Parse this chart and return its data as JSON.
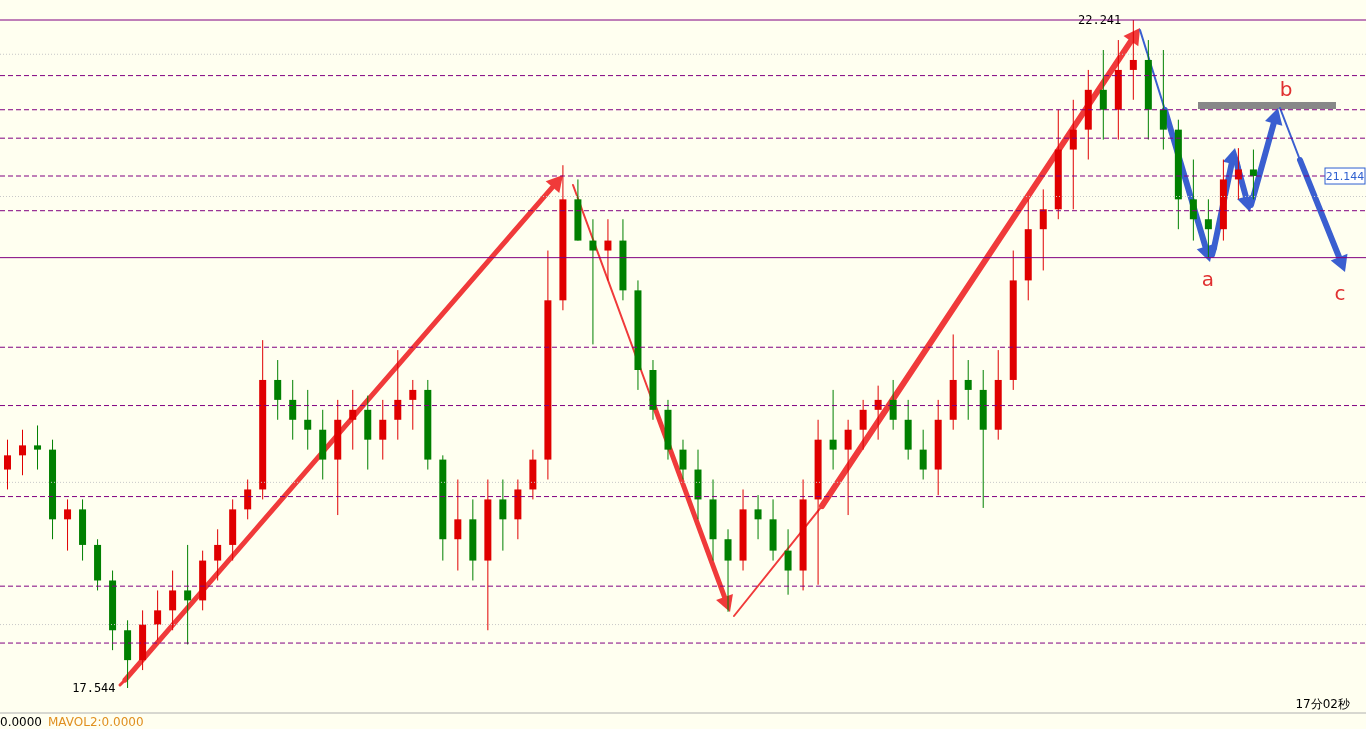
{
  "chart_data": {
    "type": "candlestick",
    "categories": [
      null,
      null,
      null,
      null,
      null,
      null,
      null,
      null,
      null,
      null,
      null,
      null,
      null,
      null,
      null,
      null,
      null,
      null,
      null,
      null,
      null,
      null,
      null,
      null,
      null,
      null,
      null,
      null,
      null,
      null,
      null,
      null,
      null,
      null,
      null,
      null,
      null,
      null,
      null,
      null,
      null,
      null,
      null,
      null,
      null,
      null,
      null,
      null,
      null,
      null,
      null,
      null,
      null,
      null,
      null,
      null,
      null,
      null,
      null,
      null,
      null,
      null,
      null,
      null,
      null,
      null,
      null,
      null,
      null,
      null,
      null,
      null,
      null,
      null,
      null,
      null,
      null,
      null,
      null,
      null,
      null,
      null,
      null,
      null
    ],
    "ohlc": [
      [
        19.08,
        19.29,
        18.94,
        19.18
      ],
      [
        19.18,
        19.36,
        19.04,
        19.25
      ],
      [
        19.25,
        19.39,
        19.08,
        19.22
      ],
      [
        19.22,
        19.29,
        18.59,
        18.73
      ],
      [
        18.73,
        18.87,
        18.51,
        18.8
      ],
      [
        18.8,
        18.87,
        18.44,
        18.55
      ],
      [
        18.55,
        18.59,
        18.23,
        18.3
      ],
      [
        18.3,
        18.37,
        17.81,
        17.95
      ],
      [
        17.95,
        18.02,
        17.544,
        17.74
      ],
      [
        17.74,
        18.09,
        17.67,
        17.99
      ],
      [
        17.99,
        18.23,
        17.88,
        18.09
      ],
      [
        18.09,
        18.37,
        17.95,
        18.23
      ],
      [
        18.23,
        18.55,
        17.85,
        18.16
      ],
      [
        18.16,
        18.51,
        18.09,
        18.44
      ],
      [
        18.44,
        18.66,
        18.3,
        18.55
      ],
      [
        18.55,
        18.87,
        18.44,
        18.8
      ],
      [
        18.8,
        19.01,
        18.73,
        18.94
      ],
      [
        18.94,
        19.99,
        18.87,
        19.71
      ],
      [
        19.71,
        19.85,
        19.43,
        19.57
      ],
      [
        19.57,
        19.71,
        19.29,
        19.43
      ],
      [
        19.43,
        19.64,
        19.22,
        19.36
      ],
      [
        19.36,
        19.5,
        19.01,
        19.15
      ],
      [
        19.15,
        19.57,
        18.76,
        19.43
      ],
      [
        19.43,
        19.64,
        19.22,
        19.5
      ],
      [
        19.5,
        19.6,
        19.08,
        19.29
      ],
      [
        19.29,
        19.57,
        19.15,
        19.43
      ],
      [
        19.43,
        19.92,
        19.29,
        19.57
      ],
      [
        19.57,
        19.71,
        19.36,
        19.64
      ],
      [
        19.64,
        19.71,
        19.08,
        19.15
      ],
      [
        19.15,
        19.18,
        18.44,
        18.59
      ],
      [
        18.59,
        19.01,
        18.37,
        18.73
      ],
      [
        18.73,
        18.87,
        18.3,
        18.44
      ],
      [
        18.44,
        19.01,
        17.95,
        18.87
      ],
      [
        18.87,
        19.01,
        18.51,
        18.73
      ],
      [
        18.73,
        19.01,
        18.59,
        18.94
      ],
      [
        18.94,
        19.22,
        18.87,
        19.15
      ],
      [
        19.15,
        20.62,
        19.01,
        20.27
      ],
      [
        20.27,
        21.22,
        20.2,
        20.98
      ],
      [
        20.98,
        21.12,
        20.69,
        20.69
      ],
      [
        20.69,
        20.84,
        19.96,
        20.62
      ],
      [
        20.62,
        20.84,
        20.41,
        20.69
      ],
      [
        20.69,
        20.84,
        20.27,
        20.34
      ],
      [
        20.34,
        20.41,
        19.64,
        19.78
      ],
      [
        19.78,
        19.85,
        19.43,
        19.5
      ],
      [
        19.5,
        19.57,
        19.15,
        19.22
      ],
      [
        19.22,
        19.29,
        19.01,
        19.08
      ],
      [
        19.08,
        19.22,
        18.73,
        18.87
      ],
      [
        18.87,
        19.01,
        18.44,
        18.59
      ],
      [
        18.59,
        18.66,
        18.08,
        18.44
      ],
      [
        18.44,
        18.94,
        18.37,
        18.8
      ],
      [
        18.8,
        18.9,
        18.59,
        18.73
      ],
      [
        18.73,
        18.87,
        18.44,
        18.51
      ],
      [
        18.51,
        18.66,
        18.2,
        18.37
      ],
      [
        18.37,
        19.01,
        18.23,
        18.87
      ],
      [
        18.87,
        19.43,
        18.27,
        19.29
      ],
      [
        19.29,
        19.64,
        19.08,
        19.22
      ],
      [
        19.22,
        19.43,
        18.76,
        19.36
      ],
      [
        19.36,
        19.57,
        19.22,
        19.5
      ],
      [
        19.5,
        19.67,
        19.29,
        19.57
      ],
      [
        19.57,
        19.71,
        19.36,
        19.43
      ],
      [
        19.43,
        19.57,
        19.15,
        19.22
      ],
      [
        19.22,
        19.36,
        19.01,
        19.08
      ],
      [
        19.08,
        19.57,
        18.9,
        19.43
      ],
      [
        19.43,
        20.03,
        19.36,
        19.71
      ],
      [
        19.71,
        19.85,
        19.43,
        19.64
      ],
      [
        19.64,
        19.78,
        18.81,
        19.36
      ],
      [
        19.36,
        19.92,
        19.29,
        19.71
      ],
      [
        19.71,
        20.62,
        19.64,
        20.41
      ],
      [
        20.41,
        20.98,
        20.27,
        20.77
      ],
      [
        20.77,
        21.05,
        20.48,
        20.91
      ],
      [
        20.91,
        21.61,
        20.84,
        21.33
      ],
      [
        21.33,
        21.68,
        20.91,
        21.47
      ],
      [
        21.47,
        21.89,
        21.26,
        21.75
      ],
      [
        21.75,
        22.03,
        21.4,
        21.61
      ],
      [
        21.61,
        22.1,
        21.4,
        21.89
      ],
      [
        21.89,
        22.241,
        21.68,
        21.96
      ],
      [
        21.96,
        22.1,
        21.4,
        21.61
      ],
      [
        21.61,
        22.03,
        21.33,
        21.47
      ],
      [
        21.47,
        21.54,
        20.77,
        20.98
      ],
      [
        20.98,
        21.26,
        20.69,
        20.84
      ],
      [
        20.84,
        20.98,
        20.57,
        20.77
      ],
      [
        20.77,
        21.26,
        20.69,
        21.12
      ],
      [
        21.12,
        21.34,
        20.98,
        21.19
      ],
      [
        21.19,
        21.33,
        20.98,
        21.144
      ]
    ],
    "colors": [
      "#e00000",
      "#e00000",
      "#008000",
      "#008000",
      "#e00000",
      "#008000",
      "#008000",
      "#008000",
      "#008000",
      "#e00000",
      "#e00000",
      "#e00000",
      "#008000",
      "#e00000",
      "#e00000",
      "#e00000",
      "#e00000",
      "#e00000",
      "#008000",
      "#008000",
      "#008000",
      "#008000",
      "#e00000",
      "#e00000",
      "#008000",
      "#e00000",
      "#e00000",
      "#e00000",
      "#008000",
      "#008000",
      "#e00000",
      "#008000",
      "#e00000",
      "#008000",
      "#e00000",
      "#e00000",
      "#e00000",
      "#e00000",
      "#008000",
      "#008000",
      "#e00000",
      "#008000",
      "#008000",
      "#008000",
      "#008000",
      "#008000",
      "#008000",
      "#008000",
      "#008000",
      "#e00000",
      "#008000",
      "#008000",
      "#008000",
      "#e00000",
      "#e00000",
      "#008000",
      "#e00000",
      "#e00000",
      "#e00000",
      "#008000",
      "#008000",
      "#008000",
      "#e00000",
      "#e00000",
      "#008000",
      "#008000",
      "#e00000",
      "#e00000",
      "#e00000",
      "#e00000",
      "#e00000",
      "#e00000",
      "#e00000",
      "#008000",
      "#e00000",
      "#e00000",
      "#008000",
      "#008000",
      "#008000",
      "#008000",
      "#008000",
      "#e00000",
      "#e00000",
      "#008000"
    ],
    "ref_lines": [
      {
        "axis": "y",
        "value": 22.241,
        "color": "#800080",
        "line_style": "solid"
      },
      {
        "axis": "y",
        "value": 22.0,
        "color": "#c8c8c8",
        "line_style": "dotted"
      },
      {
        "axis": "y",
        "value": 21.85,
        "color": "#800080",
        "line_style": "dashed"
      },
      {
        "axis": "y",
        "value": 21.61,
        "color": "#800080",
        "line_style": "dashed"
      },
      {
        "axis": "y",
        "value": 21.41,
        "color": "#800080",
        "line_style": "dashed"
      },
      {
        "axis": "y",
        "value": 21.144,
        "label": "21.144",
        "color": "#800080",
        "line_style": "dashed"
      },
      {
        "axis": "y",
        "value": 21.0,
        "color": "#c8c8c8",
        "line_style": "dotted"
      },
      {
        "axis": "y",
        "value": 20.9,
        "color": "#800080",
        "line_style": "dashed"
      },
      {
        "axis": "y",
        "value": 20.57,
        "color": "#800080",
        "line_style": "solid"
      },
      {
        "axis": "y",
        "value": 19.94,
        "color": "#800080",
        "line_style": "dashed"
      },
      {
        "axis": "y",
        "value": 19.53,
        "color": "#800080",
        "line_style": "dashed"
      },
      {
        "axis": "y",
        "value": 18.99,
        "color": "#c8c8c8",
        "line_style": "dotted"
      },
      {
        "axis": "y",
        "value": 18.89,
        "color": "#800080",
        "line_style": "dashed"
      },
      {
        "axis": "y",
        "value": 18.26,
        "color": "#800080",
        "line_style": "dashed"
      },
      {
        "axis": "y",
        "value": 17.99,
        "color": "#c8c8c8",
        "line_style": "dotted"
      },
      {
        "axis": "y",
        "value": 17.86,
        "color": "#800080",
        "line_style": "dashed"
      }
    ],
    "annotations": [
      "22.241",
      "17.544",
      "a",
      "b",
      "c",
      "17分02秒",
      "0.0000",
      "MAVOL2:0.0000"
    ]
  }
}
